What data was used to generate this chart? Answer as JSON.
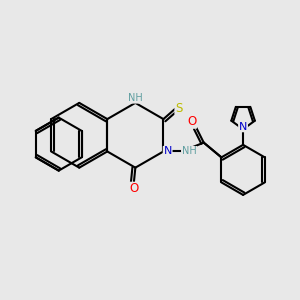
{
  "bg_color": "#e8e8e8",
  "bond_color": "#000000",
  "lw": 1.5,
  "atom_colors": {
    "N": "#0000cc",
    "O": "#ff0000",
    "S": "#bbbb00",
    "NH_teal": "#5f9ea0",
    "C": "#000000"
  }
}
